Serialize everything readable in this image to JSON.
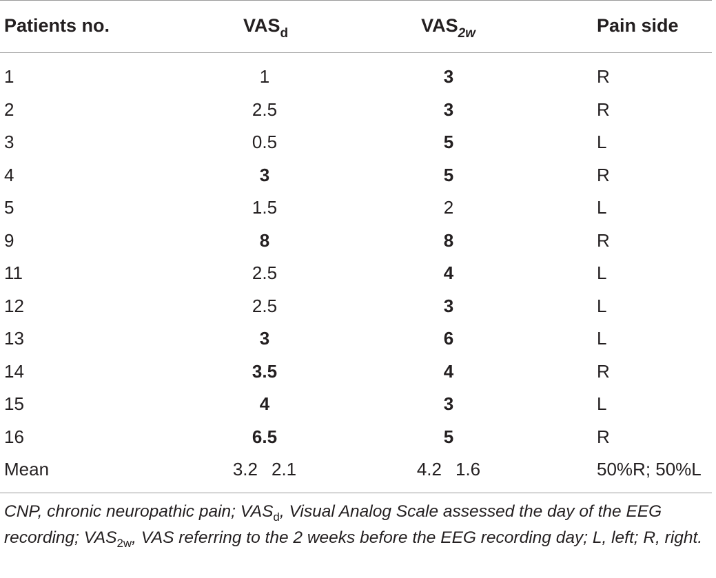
{
  "table": {
    "headers": {
      "patients": "Patients no.",
      "vas_d_main": "VAS",
      "vas_d_sub": "d",
      "vas_2w_main": "VAS",
      "vas_2w_sub": "2w",
      "pain_side": "Pain side"
    },
    "rows": [
      {
        "no": "1",
        "vas_d": "1",
        "vas_d_bold": false,
        "vas_2w": "3",
        "vas_2w_bold": true,
        "side": "R"
      },
      {
        "no": "2",
        "vas_d": "2.5",
        "vas_d_bold": false,
        "vas_2w": "3",
        "vas_2w_bold": true,
        "side": "R"
      },
      {
        "no": "3",
        "vas_d": "0.5",
        "vas_d_bold": false,
        "vas_2w": "5",
        "vas_2w_bold": true,
        "side": "L"
      },
      {
        "no": "4",
        "vas_d": "3",
        "vas_d_bold": true,
        "vas_2w": "5",
        "vas_2w_bold": true,
        "side": "R"
      },
      {
        "no": "5",
        "vas_d": "1.5",
        "vas_d_bold": false,
        "vas_2w": "2",
        "vas_2w_bold": false,
        "side": "L"
      },
      {
        "no": "9",
        "vas_d": "8",
        "vas_d_bold": true,
        "vas_2w": "8",
        "vas_2w_bold": true,
        "side": "R"
      },
      {
        "no": "11",
        "vas_d": "2.5",
        "vas_d_bold": false,
        "vas_2w": "4",
        "vas_2w_bold": true,
        "side": "L"
      },
      {
        "no": "12",
        "vas_d": "2.5",
        "vas_d_bold": false,
        "vas_2w": "3",
        "vas_2w_bold": true,
        "side": "L"
      },
      {
        "no": "13",
        "vas_d": "3",
        "vas_d_bold": true,
        "vas_2w": "6",
        "vas_2w_bold": true,
        "side": "L"
      },
      {
        "no": "14",
        "vas_d": "3.5",
        "vas_d_bold": true,
        "vas_2w": "4",
        "vas_2w_bold": true,
        "side": "R"
      },
      {
        "no": "15",
        "vas_d": "4",
        "vas_d_bold": true,
        "vas_2w": "3",
        "vas_2w_bold": true,
        "side": "L"
      },
      {
        "no": "16",
        "vas_d": "6.5",
        "vas_d_bold": true,
        "vas_2w": "5",
        "vas_2w_bold": true,
        "side": "R"
      }
    ],
    "mean": {
      "label": "Mean",
      "vas_d_mean": "3.2",
      "vas_d_sd": "2.1",
      "vas_2w_mean": "4.2",
      "vas_2w_sd": "1.6",
      "side": "50%R; 50%L"
    }
  },
  "footnote": {
    "part1": "CNP, chronic neuropathic pain; VAS",
    "sub1": "d",
    "part2": ", Visual Analog Scale assessed the day of the EEG recording; VAS",
    "sub2": "2w",
    "part3": ", VAS referring to the 2 weeks before the EEG recording day; L, left; R, right."
  }
}
